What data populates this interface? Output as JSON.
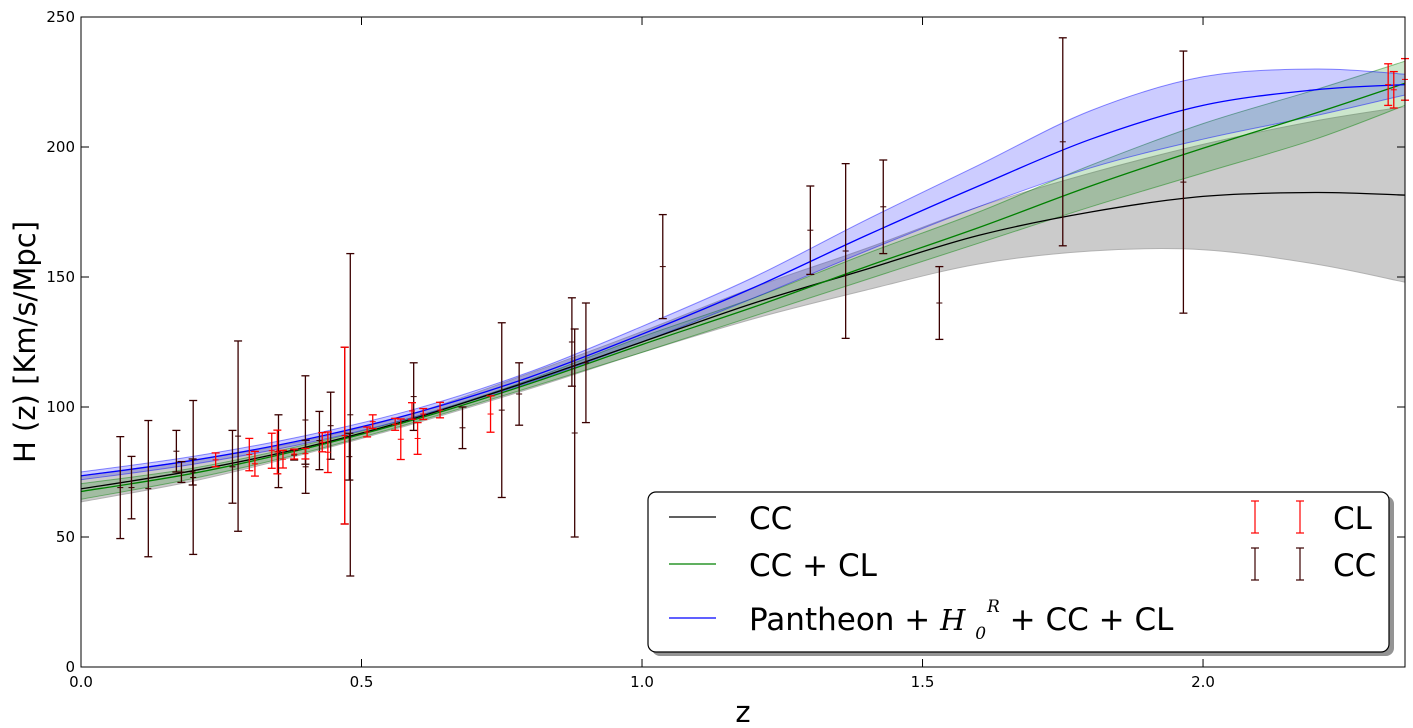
{
  "chart_data": {
    "type": "line",
    "xlabel": "z",
    "ylabel": "H (z) [Km/s/Mpc]",
    "xlim": [
      0.0,
      2.36
    ],
    "ylim": [
      0,
      250
    ],
    "xticks": [
      0.0,
      0.5,
      1.0,
      1.5,
      2.0
    ],
    "xtick_labels": [
      "0.0",
      "0.5",
      "1.0",
      "1.5",
      "2.0"
    ],
    "yticks": [
      0,
      50,
      100,
      150,
      200,
      250
    ],
    "ytick_labels": [
      "0",
      "50",
      "100",
      "150",
      "200",
      "250"
    ],
    "grid": false,
    "legend_position": "lower-right",
    "curves": [
      {
        "name": "CC",
        "color": "#000000",
        "band_color": "#a8a8a8",
        "band_opacity": 0.6,
        "x": [
          0,
          0.2,
          0.4,
          0.6,
          0.8,
          1.0,
          1.2,
          1.4,
          1.6,
          1.8,
          2.0,
          2.2,
          2.36
        ],
        "y": [
          68.5,
          75.5,
          84.5,
          96,
          110,
          125,
          140,
          153,
          166,
          175,
          181,
          182.5,
          181.5
        ],
        "lower": [
          63.5,
          71.5,
          82,
          94,
          107,
          121,
          134,
          145,
          155,
          160,
          160.5,
          155,
          148
        ],
        "upper": [
          73.5,
          79.5,
          87,
          98,
          113,
          129,
          146,
          161,
          177,
          190,
          201,
          210,
          215.5
        ]
      },
      {
        "name": "CC + CL",
        "color": "#008000",
        "band_color": "#008000",
        "band_opacity": 0.2,
        "x": [
          0,
          0.2,
          0.4,
          0.6,
          0.8,
          1.0,
          1.2,
          1.4,
          1.6,
          1.8,
          2.0,
          2.2,
          2.36
        ],
        "y": [
          67.5,
          74.5,
          84,
          95.5,
          109,
          124,
          138.5,
          154,
          169,
          185,
          199.5,
          213,
          224.5
        ],
        "lower": [
          64.5,
          72.5,
          82.5,
          94.5,
          107.5,
          121,
          135,
          149,
          163,
          177,
          190,
          203,
          216
        ],
        "upper": [
          70.5,
          76.5,
          85.5,
          96.5,
          110.5,
          127,
          142,
          159,
          175,
          193,
          209,
          222,
          233
        ]
      },
      {
        "name": "Pantheon + H0R + CC + CL",
        "color": "#0000ff",
        "band_color": "#0000ff",
        "band_opacity": 0.2,
        "x": [
          0,
          0.2,
          0.4,
          0.6,
          0.8,
          1.0,
          1.2,
          1.4,
          1.6,
          1.8,
          2.0,
          2.2,
          2.36
        ],
        "y": [
          73.5,
          79.5,
          87.5,
          98,
          111.5,
          128,
          146,
          166,
          185,
          203,
          216,
          222,
          224
        ],
        "lower": [
          72,
          78,
          86,
          96.5,
          109.5,
          125,
          142,
          160,
          177,
          192,
          203,
          212,
          220
        ],
        "upper": [
          75,
          81,
          89,
          99.5,
          113.5,
          131,
          150,
          172,
          193,
          214,
          227,
          230,
          228
        ]
      }
    ],
    "series": [
      {
        "name": "CC",
        "color": "#3a0000",
        "points": [
          [
            0.07,
            69,
            19.6
          ],
          [
            0.09,
            69,
            12
          ],
          [
            0.12,
            68.6,
            26.2
          ],
          [
            0.17,
            83,
            8
          ],
          [
            0.179,
            75,
            4
          ],
          [
            0.199,
            75,
            5
          ],
          [
            0.2,
            72.9,
            29.6
          ],
          [
            0.27,
            77,
            14
          ],
          [
            0.28,
            88.8,
            36.6
          ],
          [
            0.352,
            83,
            14
          ],
          [
            0.38,
            81.5,
            1.9
          ],
          [
            0.4,
            95,
            17
          ],
          [
            0.4004,
            77,
            10.2
          ],
          [
            0.425,
            87.1,
            11.2
          ],
          [
            0.445,
            92.8,
            12.9
          ],
          [
            0.47,
            89,
            34
          ],
          [
            0.4783,
            80.9,
            9
          ],
          [
            0.48,
            97,
            62
          ],
          [
            0.593,
            104,
            13
          ],
          [
            0.68,
            92,
            8
          ],
          [
            0.75,
            98.8,
            33.6
          ],
          [
            0.781,
            105,
            12
          ],
          [
            0.875,
            125,
            17
          ],
          [
            0.88,
            90,
            40
          ],
          [
            0.9,
            117,
            23
          ],
          [
            1.037,
            154,
            20
          ],
          [
            1.3,
            168,
            17
          ],
          [
            1.363,
            160,
            33.6
          ],
          [
            1.43,
            177,
            18
          ],
          [
            1.53,
            140,
            14
          ],
          [
            1.75,
            202,
            40
          ],
          [
            1.965,
            186.5,
            50.4
          ]
        ]
      },
      {
        "name": "CL",
        "color": "#ff0000",
        "points": [
          [
            0.24,
            79.69,
            2.65
          ],
          [
            0.3,
            81.7,
            6.22
          ],
          [
            0.31,
            78.17,
            4.74
          ],
          [
            0.34,
            83.17,
            6.74
          ],
          [
            0.35,
            82.7,
            8.4
          ],
          [
            0.36,
            79.93,
            3.39
          ],
          [
            0.38,
            81.9,
            1.9
          ],
          [
            0.4,
            82.04,
            2.03
          ],
          [
            0.43,
            86.45,
            3.68
          ],
          [
            0.44,
            82.6,
            7.8
          ],
          [
            0.47,
            89,
            34
          ],
          [
            0.51,
            90.4,
            1.9
          ],
          [
            0.52,
            94.35,
            2.64
          ],
          [
            0.56,
            93.34,
            2.3
          ],
          [
            0.57,
            87.6,
            7.8
          ],
          [
            0.59,
            98.48,
            3.18
          ],
          [
            0.6,
            87.9,
            6.1
          ],
          [
            0.61,
            97.3,
            2.1
          ],
          [
            0.64,
            98.82,
            2.98
          ],
          [
            0.73,
            97.3,
            7
          ],
          [
            2.33,
            224,
            8
          ],
          [
            2.34,
            222,
            7
          ],
          [
            2.36,
            226,
            8
          ]
        ]
      }
    ],
    "legend": {
      "lines": [
        {
          "label": "CC",
          "color": "#000000"
        },
        {
          "label": "CC + CL",
          "color": "#008000"
        },
        {
          "label_prefix": "Pantheon + ",
          "label_math_base": "H",
          "label_math_sub": "0",
          "label_math_sup": "R",
          "label_suffix": " + CC + CL",
          "color": "#0000ff"
        }
      ],
      "errorbars": [
        {
          "label": "CL",
          "color": "#ff0000"
        },
        {
          "label": "CC",
          "color": "#3a0000"
        }
      ]
    }
  }
}
